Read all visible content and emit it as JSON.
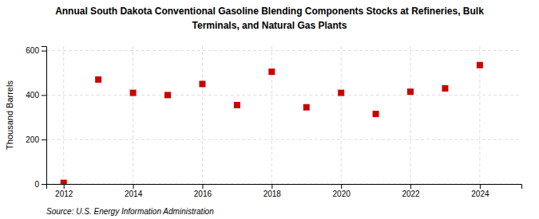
{
  "chart_data": {
    "type": "scatter",
    "title": "Annual South Dakota Conventional Gasoline Blending Components Stocks at Refineries, Bulk",
    "subtitle": "Terminals, and Natural Gas Plants",
    "ylabel": "Thousand Barrels",
    "annotations": [
      "Source: U.S. Energy Information Administration"
    ],
    "x": [
      2012,
      2013,
      2014,
      2015,
      2016,
      2017,
      2018,
      2019,
      2020,
      2021,
      2022,
      2023,
      2024
    ],
    "values": [
      5,
      470,
      410,
      400,
      450,
      355,
      505,
      345,
      410,
      315,
      415,
      430,
      535
    ],
    "color": "#cc0000",
    "marker": "square",
    "xlim": [
      2011.5,
      2025.2
    ],
    "ylim": [
      0,
      620
    ],
    "xticks": [
      2012,
      2014,
      2016,
      2018,
      2020,
      2022,
      2024
    ],
    "yticks": [
      0,
      200,
      400,
      600
    ],
    "grid": true
  }
}
